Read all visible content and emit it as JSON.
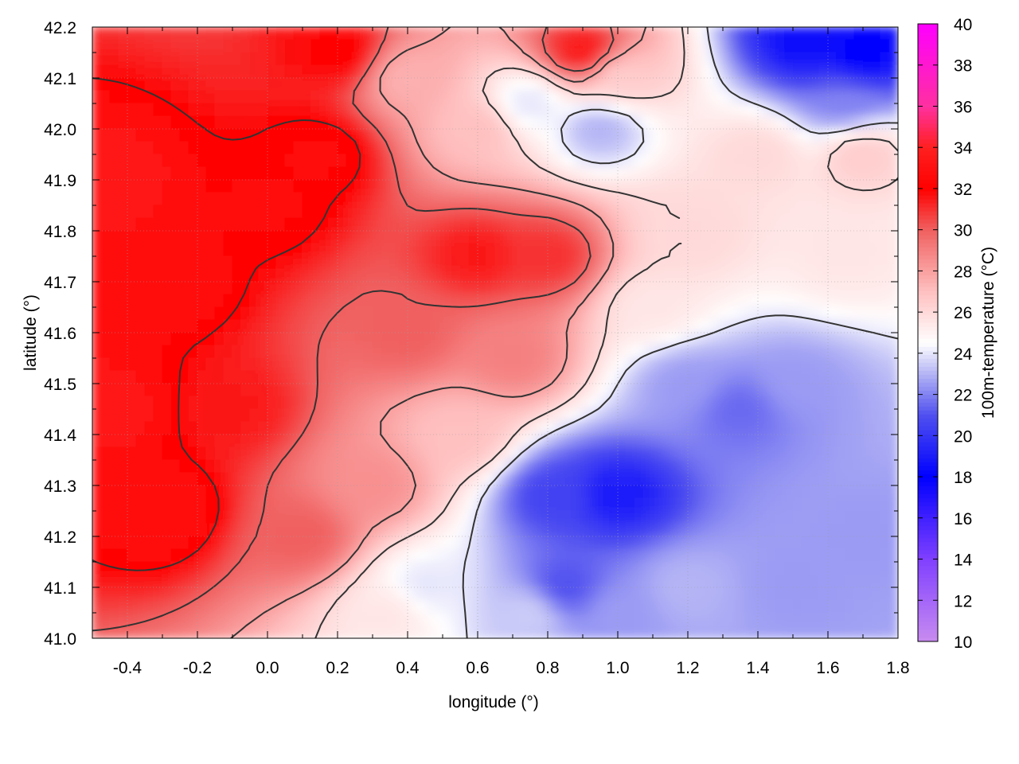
{
  "chart_data": {
    "type": "heatmap",
    "title": "",
    "xlabel": "longitude (°)",
    "ylabel": "latitude (°)",
    "colorbar_label": "100m-temperature (°C)",
    "xlim": [
      -0.5,
      1.8
    ],
    "ylim": [
      41.0,
      42.2
    ],
    "x_ticks": [
      -0.4,
      -0.2,
      0.0,
      0.2,
      0.4,
      0.6,
      0.8,
      1.0,
      1.2,
      1.4,
      1.6,
      1.8
    ],
    "x_tick_labels": [
      "-0.4",
      "-0.2",
      "0.0",
      "0.2",
      "0.4",
      "0.6",
      "0.8",
      "1.0",
      "1.2",
      "1.4",
      "1.6",
      "1.8"
    ],
    "y_ticks": [
      41.0,
      41.1,
      41.2,
      41.3,
      41.4,
      41.5,
      41.6,
      41.7,
      41.8,
      41.9,
      42.0,
      42.1,
      42.2
    ],
    "y_tick_labels": [
      "41.0",
      "41.1",
      "41.2",
      "41.3",
      "41.4",
      "41.5",
      "41.6",
      "41.7",
      "41.8",
      "41.9",
      "42.0",
      "42.1",
      "42.2"
    ],
    "colorbar_range": [
      10,
      40
    ],
    "colorbar_ticks": [
      10,
      12,
      14,
      16,
      18,
      20,
      22,
      24,
      26,
      28,
      30,
      32,
      34,
      36,
      38,
      40
    ],
    "colorbar_tick_labels": [
      "10",
      "12",
      "14",
      "16",
      "18",
      "20",
      "22",
      "24",
      "26",
      "28",
      "30",
      "32",
      "34",
      "36",
      "38",
      "40"
    ],
    "colormap": [
      {
        "value": 10,
        "color": "#c88cf0"
      },
      {
        "value": 14,
        "color": "#8040ff"
      },
      {
        "value": 18,
        "color": "#0000ff"
      },
      {
        "value": 21,
        "color": "#5050f0"
      },
      {
        "value": 23,
        "color": "#b4b4f5"
      },
      {
        "value": 24.5,
        "color": "#ffffff"
      },
      {
        "value": 27,
        "color": "#ffc0c0"
      },
      {
        "value": 30,
        "color": "#f06060"
      },
      {
        "value": 32,
        "color": "#ff0000"
      },
      {
        "value": 34,
        "color": "#ff2020"
      },
      {
        "value": 36,
        "color": "#ff30a0"
      },
      {
        "value": 40,
        "color": "#ff00ff"
      }
    ],
    "contour_levels": [
      24,
      26,
      28,
      30,
      32
    ],
    "grid": true,
    "field_samples": [
      {
        "lon": -0.45,
        "lat": 41.9,
        "temp": 33.5
      },
      {
        "lon": -0.3,
        "lat": 41.7,
        "temp": 33.0
      },
      {
        "lon": -0.45,
        "lat": 41.45,
        "temp": 33.5
      },
      {
        "lon": -0.3,
        "lat": 41.25,
        "temp": 33.0
      },
      {
        "lon": -0.1,
        "lat": 41.45,
        "temp": 31.5
      },
      {
        "lon": 0.0,
        "lat": 41.85,
        "temp": 32.5
      },
      {
        "lon": 0.15,
        "lat": 41.95,
        "temp": 32.5
      },
      {
        "lon": 0.2,
        "lat": 42.15,
        "temp": 32.0
      },
      {
        "lon": 0.4,
        "lat": 41.6,
        "temp": 30.0
      },
      {
        "lon": 0.6,
        "lat": 41.75,
        "temp": 31.5
      },
      {
        "lon": 0.8,
        "lat": 41.75,
        "temp": 31.0
      },
      {
        "lon": 0.7,
        "lat": 41.55,
        "temp": 29.0
      },
      {
        "lon": 0.1,
        "lat": 41.2,
        "temp": 30.0
      },
      {
        "lon": 0.3,
        "lat": 41.3,
        "temp": 28.5
      },
      {
        "lon": 0.35,
        "lat": 41.05,
        "temp": 25.5
      },
      {
        "lon": 0.45,
        "lat": 41.1,
        "temp": 24.0
      },
      {
        "lon": 0.55,
        "lat": 41.4,
        "temp": 27.0
      },
      {
        "lon": 0.75,
        "lat": 41.05,
        "temp": 23.5
      },
      {
        "lon": 0.83,
        "lat": 41.28,
        "temp": 20.5
      },
      {
        "lon": 0.85,
        "lat": 41.1,
        "temp": 21.0
      },
      {
        "lon": 1.0,
        "lat": 41.28,
        "temp": 19.0
      },
      {
        "lon": 1.0,
        "lat": 41.05,
        "temp": 22.5
      },
      {
        "lon": 1.2,
        "lat": 41.1,
        "temp": 23.0
      },
      {
        "lon": 1.5,
        "lat": 41.1,
        "temp": 22.5
      },
      {
        "lon": 1.7,
        "lat": 41.2,
        "temp": 22.5
      },
      {
        "lon": 1.2,
        "lat": 41.5,
        "temp": 22.5
      },
      {
        "lon": 1.35,
        "lat": 41.45,
        "temp": 21.5
      },
      {
        "lon": 1.5,
        "lat": 41.5,
        "temp": 22.5
      },
      {
        "lon": 1.2,
        "lat": 41.8,
        "temp": 26.0
      },
      {
        "lon": 1.4,
        "lat": 41.95,
        "temp": 26.0
      },
      {
        "lon": 1.65,
        "lat": 41.75,
        "temp": 25.5
      },
      {
        "lon": 1.7,
        "lat": 41.95,
        "temp": 26.5
      },
      {
        "lon": 1.55,
        "lat": 42.17,
        "temp": 18.5
      },
      {
        "lon": 1.7,
        "lat": 42.15,
        "temp": 18.0
      },
      {
        "lon": 1.65,
        "lat": 42.05,
        "temp": 22.0
      },
      {
        "lon": 0.75,
        "lat": 42.05,
        "temp": 24.0
      },
      {
        "lon": 0.9,
        "lat": 42.15,
        "temp": 31.5
      },
      {
        "lon": 1.0,
        "lat": 42.1,
        "temp": 26.5
      },
      {
        "lon": 0.95,
        "lat": 42.0,
        "temp": 23.0
      },
      {
        "lon": 0.6,
        "lat": 42.0,
        "temp": 27.0
      },
      {
        "lon": 0.4,
        "lat": 42.1,
        "temp": 27.5
      },
      {
        "lon": 1.1,
        "lat": 41.65,
        "temp": 25.5
      }
    ]
  }
}
